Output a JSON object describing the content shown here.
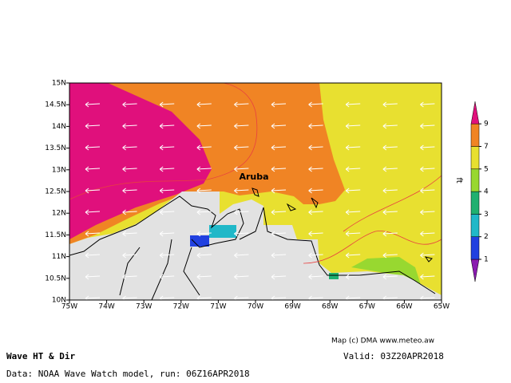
{
  "map": {
    "lon_ticks": [
      "75W",
      "74W",
      "73W",
      "72W",
      "71W",
      "70W",
      "69W",
      "68W",
      "67W",
      "66W",
      "65W"
    ],
    "lat_ticks": [
      "15N",
      "14.5N",
      "14N",
      "13.5N",
      "13N",
      "12.5N",
      "12N",
      "11.5N",
      "11N",
      "10.5N",
      "10N"
    ],
    "place_label": "Aruba",
    "colorbar": {
      "ticks": [
        1,
        2,
        3,
        4,
        5,
        7,
        9
      ],
      "colors": [
        "#8a1ab0",
        "#2040e0",
        "#20b8c8",
        "#20b070",
        "#98d830",
        "#e8e030",
        "#f08424",
        "#e0107c"
      ],
      "unit": "ft"
    },
    "credit": "Map (c) DMA www.meteo.aw",
    "title": "Wave HT & Dir",
    "valid": "Valid: 03Z20APR2018",
    "source": "Data: NOAA Wave Watch model, run: 06Z16APR2018"
  }
}
